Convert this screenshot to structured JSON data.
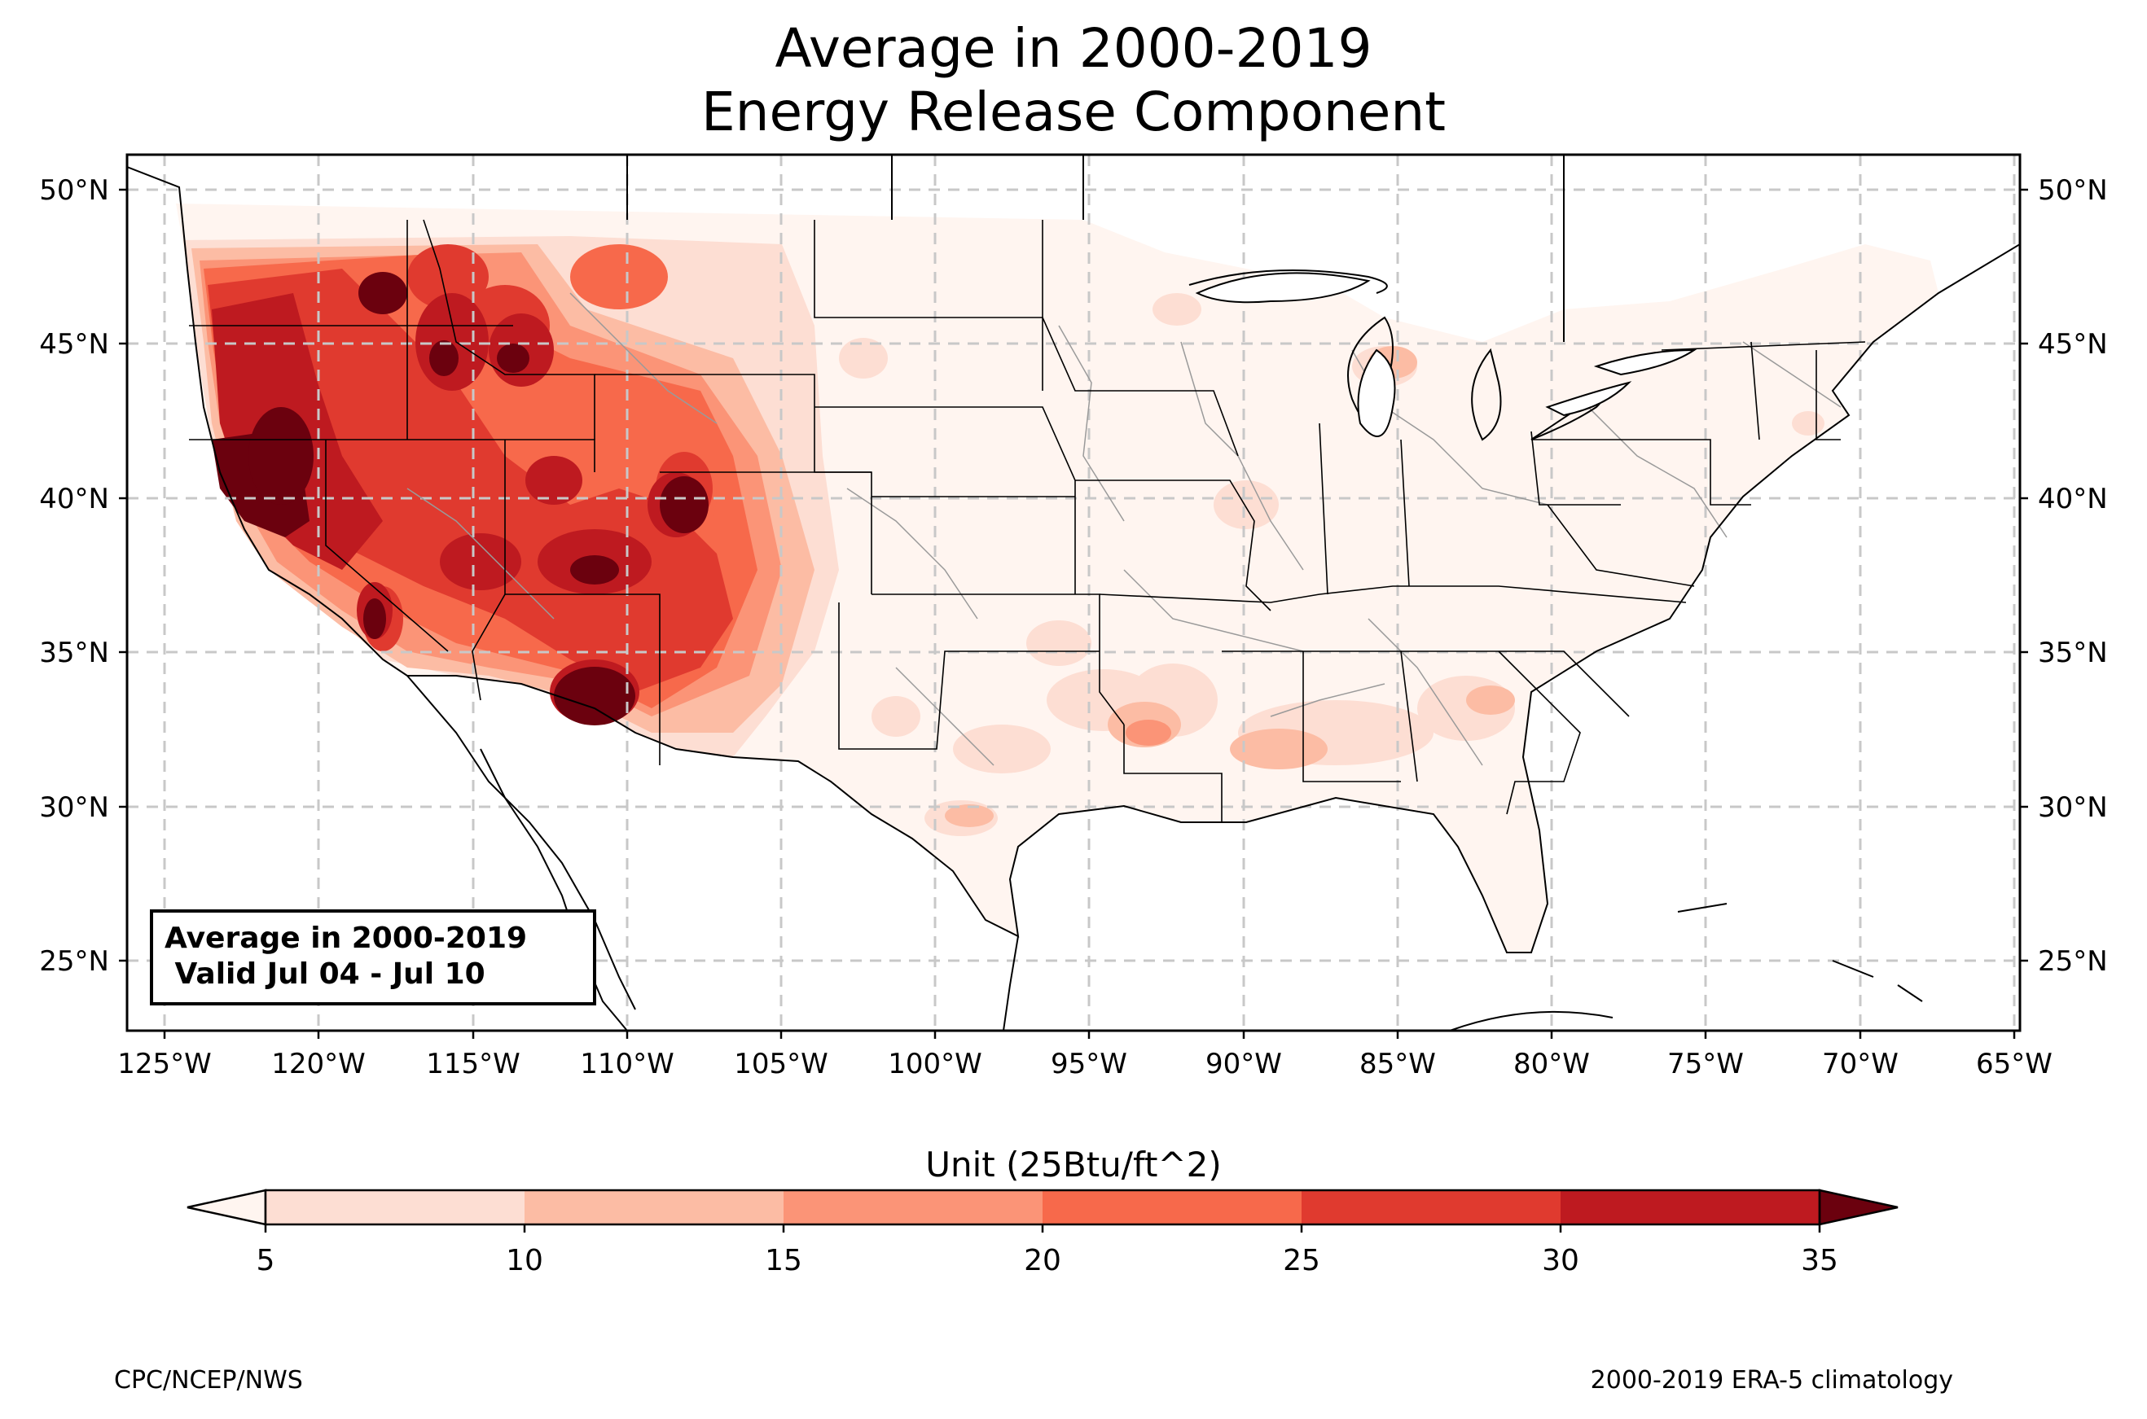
{
  "title": {
    "line1": "Average in 2000-2019",
    "line2": "Energy Release Component"
  },
  "map": {
    "lat_ticks": [
      "50°N",
      "45°N",
      "40°N",
      "35°N",
      "30°N",
      "25°N"
    ],
    "lon_ticks": [
      "125°W",
      "120°W",
      "115°W",
      "110°W",
      "105°W",
      "100°W",
      "95°W",
      "90°W",
      "85°W",
      "80°W",
      "75°W",
      "70°W",
      "65°W"
    ],
    "extent": {
      "lon": [
        -126.2,
        -64.9
      ],
      "lat": [
        22.8,
        51.2
      ]
    },
    "gridlines": true,
    "colors": {
      "c5": "#fdded3",
      "c10": "#fcbca4",
      "c15": "#fb9477",
      "c20": "#f7694b",
      "c25": "#e03a2f",
      "c30": "#be1a20",
      "c35": "#720410",
      "under": "#fff5f0",
      "border": "#000000",
      "counties": "#9a9a9a"
    }
  },
  "infobox": {
    "line1": "Average in 2000-2019",
    "line2": " Valid Jul 04 - Jul 10"
  },
  "colorbar": {
    "label": "Unit (25Btu/ft^2)",
    "ticks": [
      "5",
      "10",
      "15",
      "20",
      "25",
      "30",
      "35"
    ],
    "colors": [
      "#fdded3",
      "#fcbca4",
      "#fb9477",
      "#f7694b",
      "#e03a2f",
      "#be1a20"
    ],
    "under_color": "#fff5f0",
    "over_color": "#6b010e",
    "extend": "both"
  },
  "footer": {
    "left": "CPC/NCEP/NWS",
    "right": "2000-2019 ERA-5 climatology"
  }
}
